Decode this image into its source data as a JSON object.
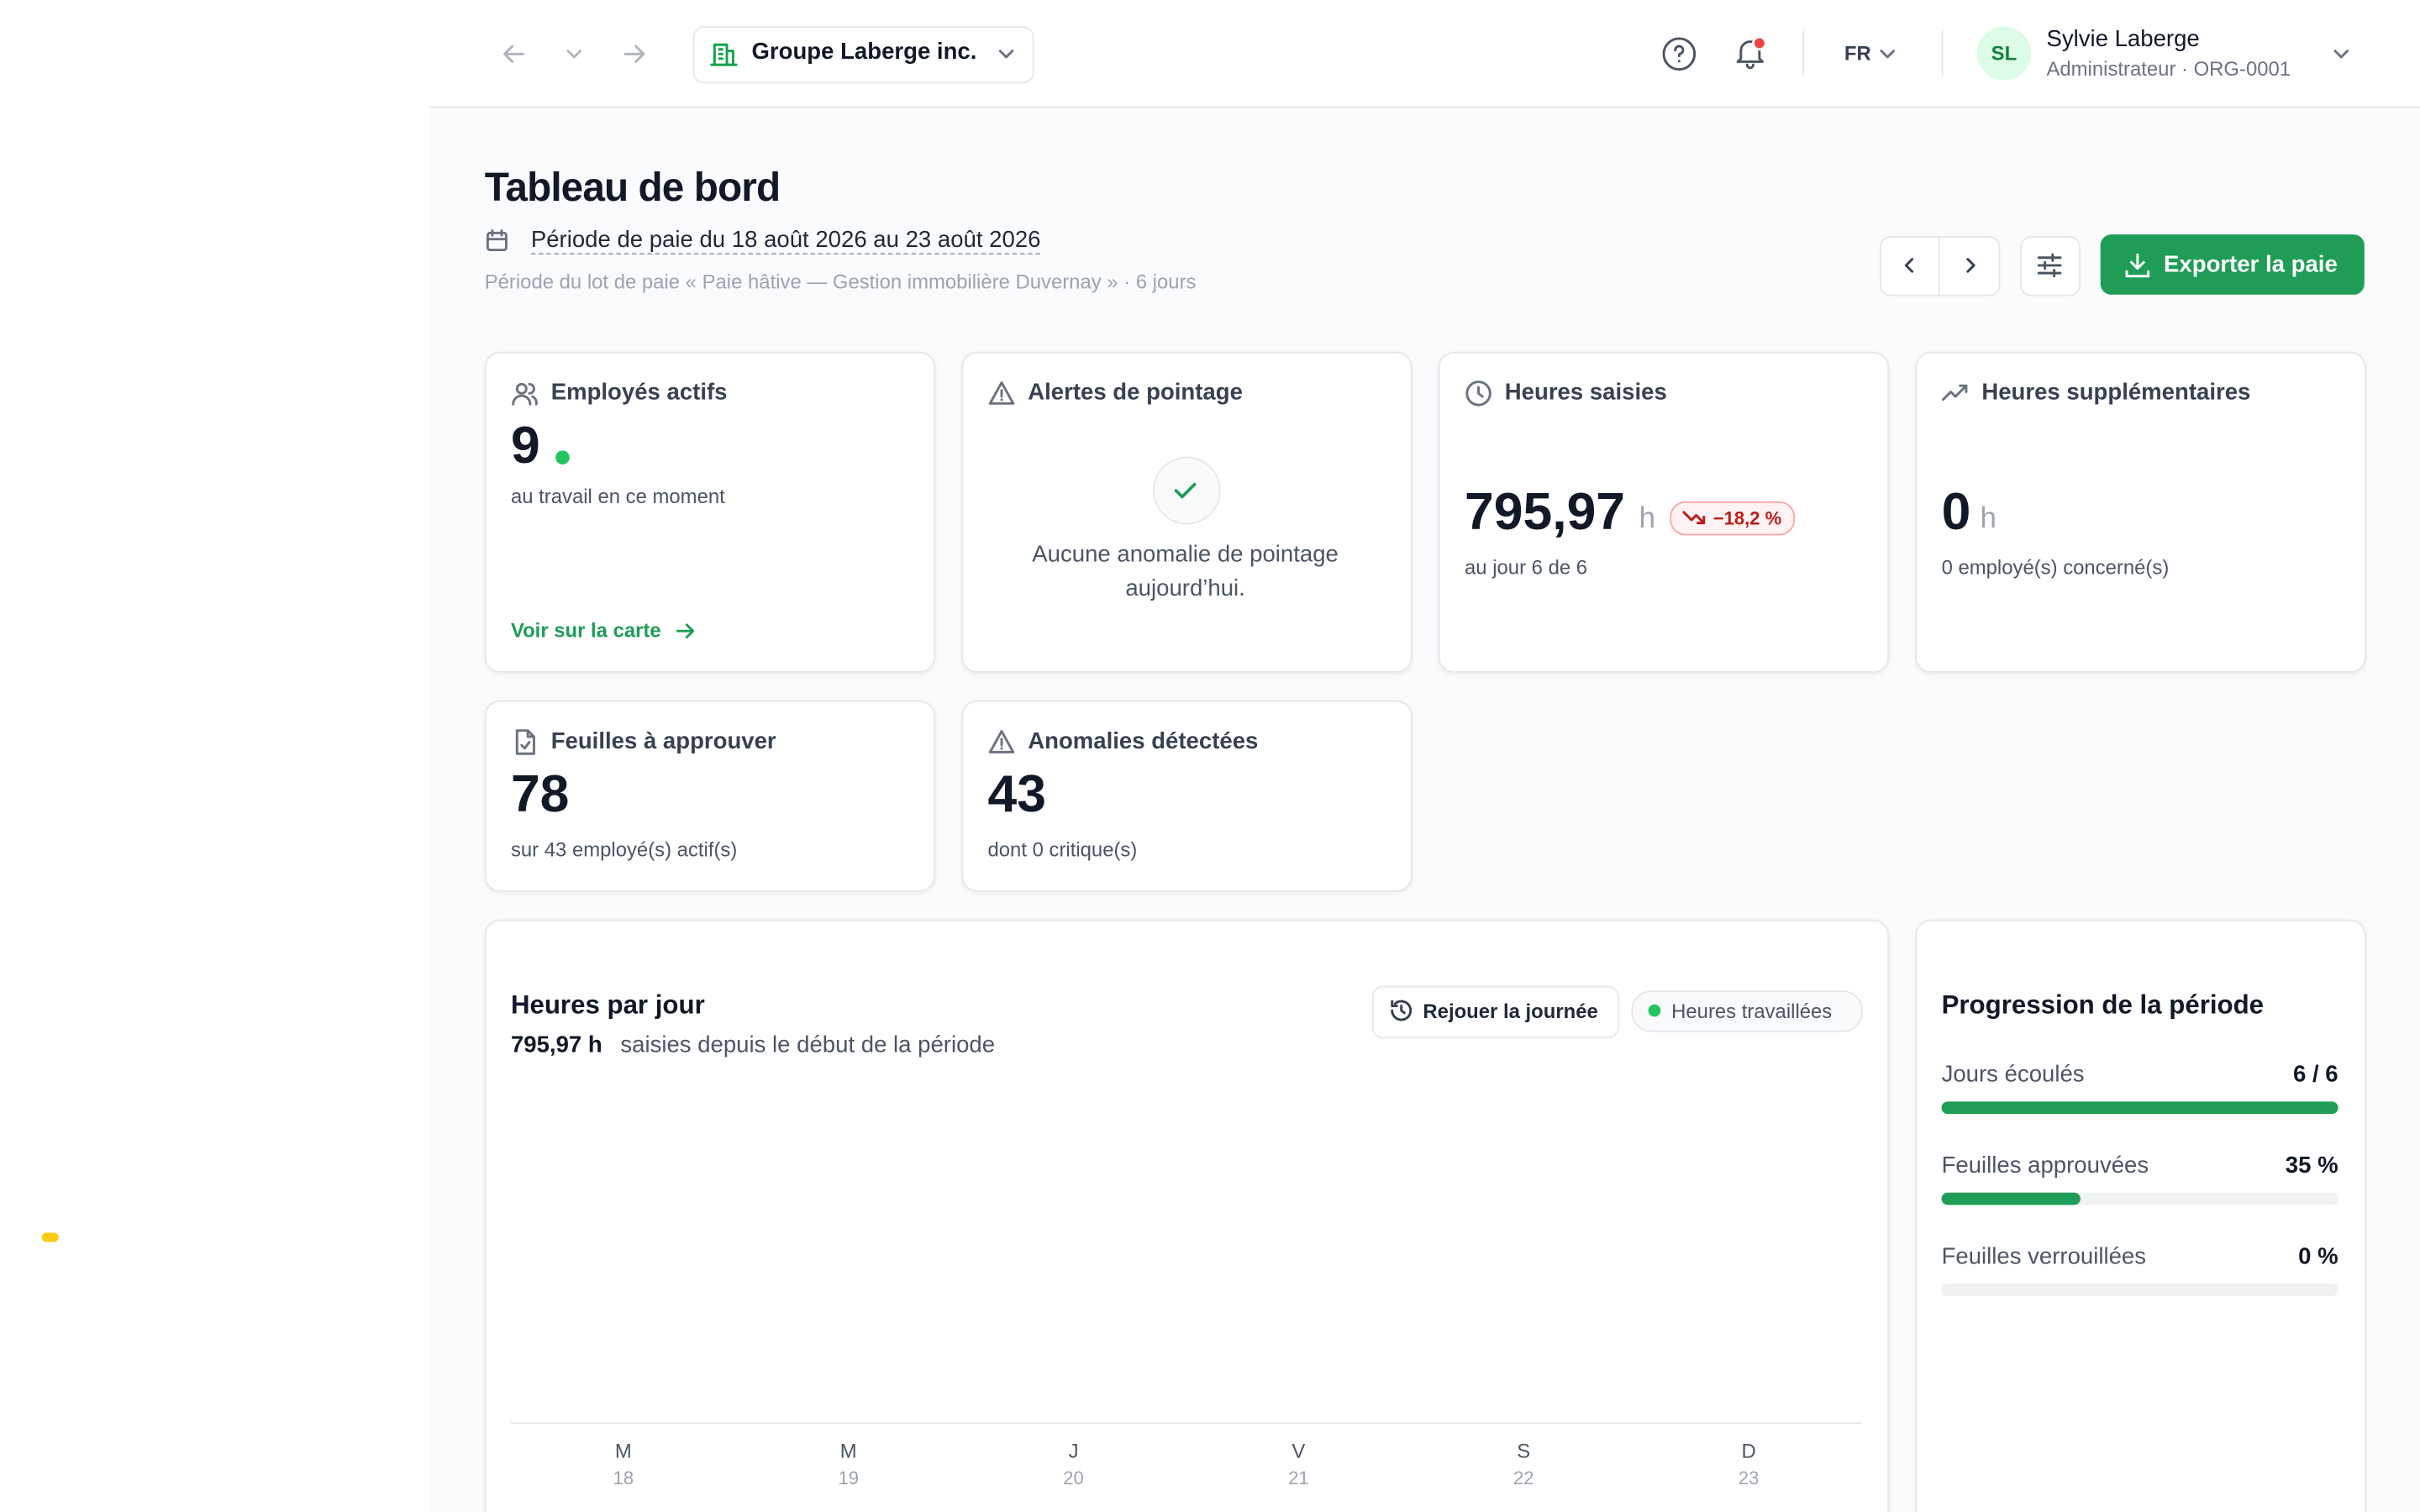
{
  "header": {
    "org": "Groupe Laberge inc.",
    "lang": "FR",
    "user": {
      "initials": "SL",
      "name": "Sylvie Laberge",
      "role": "Administrateur · ORG-0001"
    }
  },
  "page": {
    "title": "Tableau de bord",
    "period": "Période de paie du 18 août 2026 au 23 août 2026",
    "period_note": "Période du lot de paie « Paie hâtive — Gestion immobilière Duvernay » · 6 jours",
    "export": "Exporter la paie"
  },
  "cards": [
    {
      "title": "Employés actifs",
      "value": "9",
      "note": "au travail en ce moment",
      "link": "Voir sur la carte"
    },
    {
      "title": "Alertes de pointage",
      "message": "Aucune anomalie de pointage aujourd’hui."
    },
    {
      "title": "Heures saisies",
      "value": "795,97",
      "unit": "h",
      "delta": "−18,2 %",
      "note": "au jour 6 de 6"
    },
    {
      "title": "Heures supplémentaires",
      "value": "0",
      "unit": "h",
      "note": "0 employé(s) concerné(s)"
    },
    {
      "title": "Feuilles à approuver",
      "value": "78",
      "note": "sur 43 employé(s) actif(s)"
    },
    {
      "title": "Anomalies détectées",
      "value": "43",
      "note": "dont 0 critique(s)"
    }
  ],
  "hours_chart": {
    "title": "Heures par jour",
    "total": "795,97 h",
    "total_note": "saisies depuis le début de la période",
    "replay": "Rejouer la journée",
    "legend": "Heures travaillées",
    "days": [
      {
        "letter": "M",
        "date": "18"
      },
      {
        "letter": "M",
        "date": "19"
      },
      {
        "letter": "J",
        "date": "20"
      },
      {
        "letter": "V",
        "date": "21"
      },
      {
        "letter": "S",
        "date": "22"
      },
      {
        "letter": "D",
        "date": "23"
      }
    ]
  },
  "progress": {
    "title": "Progression de la période",
    "items": [
      {
        "label": "Jours écoulés",
        "value": "6 / 6"
      },
      {
        "label": "Feuilles approuvées",
        "value": "35 %"
      },
      {
        "label": "Feuilles verrouillées",
        "value": "0 %"
      }
    ]
  }
}
